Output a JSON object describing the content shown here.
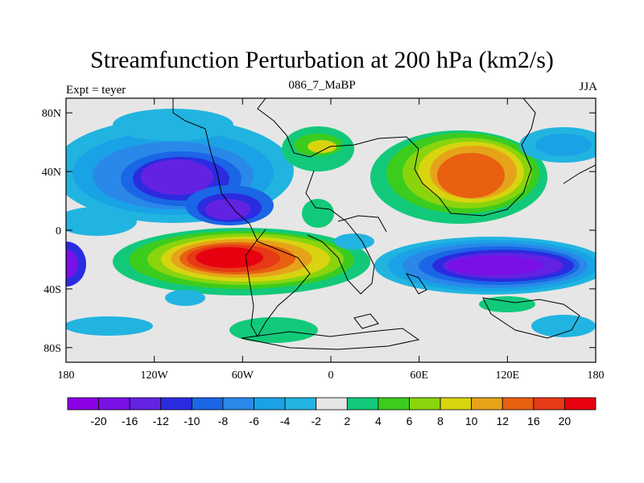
{
  "title": "Streamfunction Perturbation at 200 hPa (km2/s)",
  "left_label": "Expt = teyer",
  "center_label": "086_7_MaBP",
  "right_label": "JJA",
  "axes": {
    "lat_ticks": [
      "80N",
      "40N",
      "0",
      "40S",
      "80S"
    ],
    "lon_ticks": [
      "180",
      "120W",
      "60W",
      "0",
      "60E",
      "120E",
      "180"
    ],
    "lat_range": [
      -90,
      90
    ],
    "lon_range": [
      -180,
      180
    ]
  },
  "colorbar": {
    "labels": [
      "-20",
      "-16",
      "-12",
      "-10",
      "-8",
      "-6",
      "-4",
      "-2",
      "2",
      "4",
      "6",
      "8",
      "10",
      "12",
      "16",
      "20"
    ],
    "colors": [
      "#8a00e6",
      "#7a10e6",
      "#6322e2",
      "#2b2be0",
      "#1a66e6",
      "#2a88e8",
      "#1aa2e6",
      "#22b4e0",
      "#e6e6e6",
      "#12c97a",
      "#3ccc1e",
      "#8ad40e",
      "#d8d410",
      "#e6a31a",
      "#e86010",
      "#e63a16",
      "#e60010"
    ]
  },
  "colors": {
    "background": "#e6e6e6",
    "coast": "#000000"
  }
}
